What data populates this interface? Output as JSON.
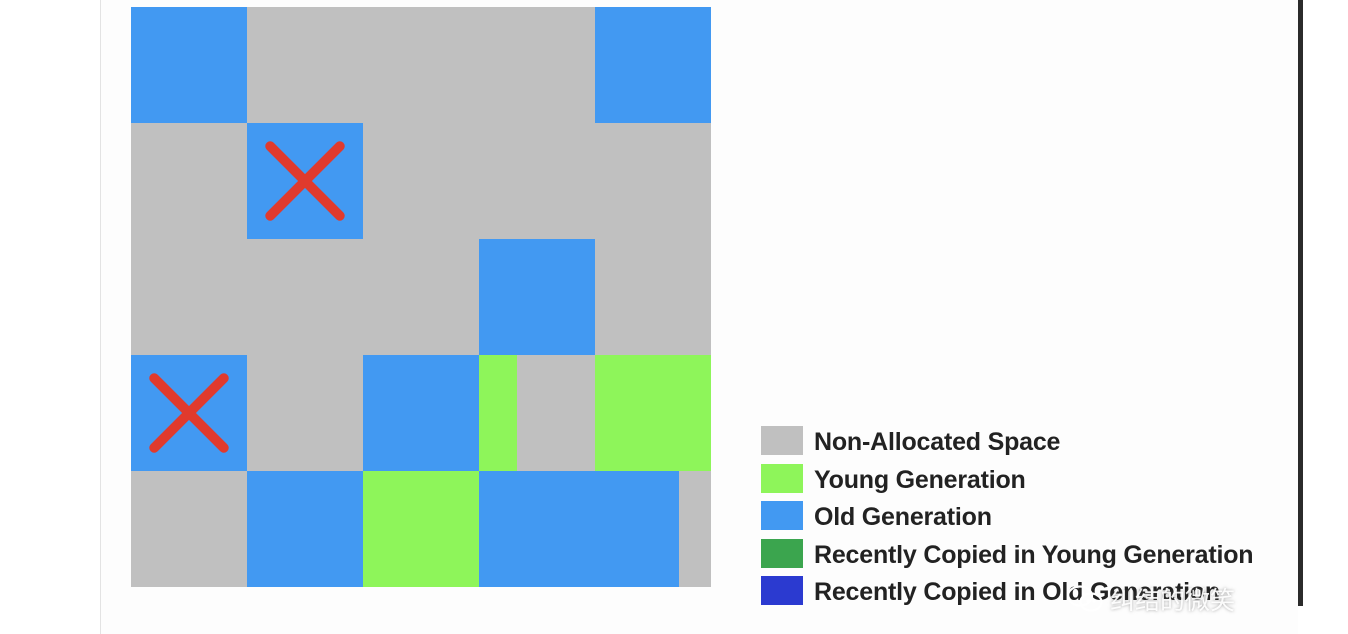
{
  "colors": {
    "non_allocated": "#c0c0c0",
    "young": "#8ef55a",
    "old": "#4299f2",
    "recent_young": "#3ba54e",
    "recent_old": "#2b3ad0",
    "mark": "#e03a2d"
  },
  "heap": {
    "cells": [
      {
        "row": 0,
        "col": 0,
        "type": "old"
      },
      {
        "row": 0,
        "col": 4,
        "type": "old"
      },
      {
        "row": 1,
        "col": 1,
        "type": "old",
        "marked": true
      },
      {
        "row": 2,
        "col": 3,
        "type": "old"
      },
      {
        "row": 3,
        "col": 0,
        "type": "old",
        "marked": true
      },
      {
        "row": 3,
        "col": 2,
        "type": "old"
      },
      {
        "row": 3,
        "col": 3,
        "type": "young",
        "fill": 0.33
      },
      {
        "row": 3,
        "col": 4,
        "type": "young"
      },
      {
        "row": 4,
        "col": 1,
        "type": "old"
      },
      {
        "row": 4,
        "col": 2,
        "type": "young"
      },
      {
        "row": 4,
        "col": 3,
        "type": "old"
      },
      {
        "row": 4,
        "col": 4,
        "type": "old",
        "fill": 0.72
      }
    ]
  },
  "legend": {
    "items": [
      {
        "key": "non_allocated",
        "label": "Non-Allocated Space"
      },
      {
        "key": "young",
        "label": "Young Generation"
      },
      {
        "key": "old",
        "label": "Old Generation"
      },
      {
        "key": "recent_young",
        "label": "Recently Copied in Young Generation"
      },
      {
        "key": "recent_old",
        "label": "Recently Copied in Old Generation"
      }
    ]
  },
  "watermark": {
    "icon": "wechat-icon",
    "text": "纠结的微笑"
  }
}
